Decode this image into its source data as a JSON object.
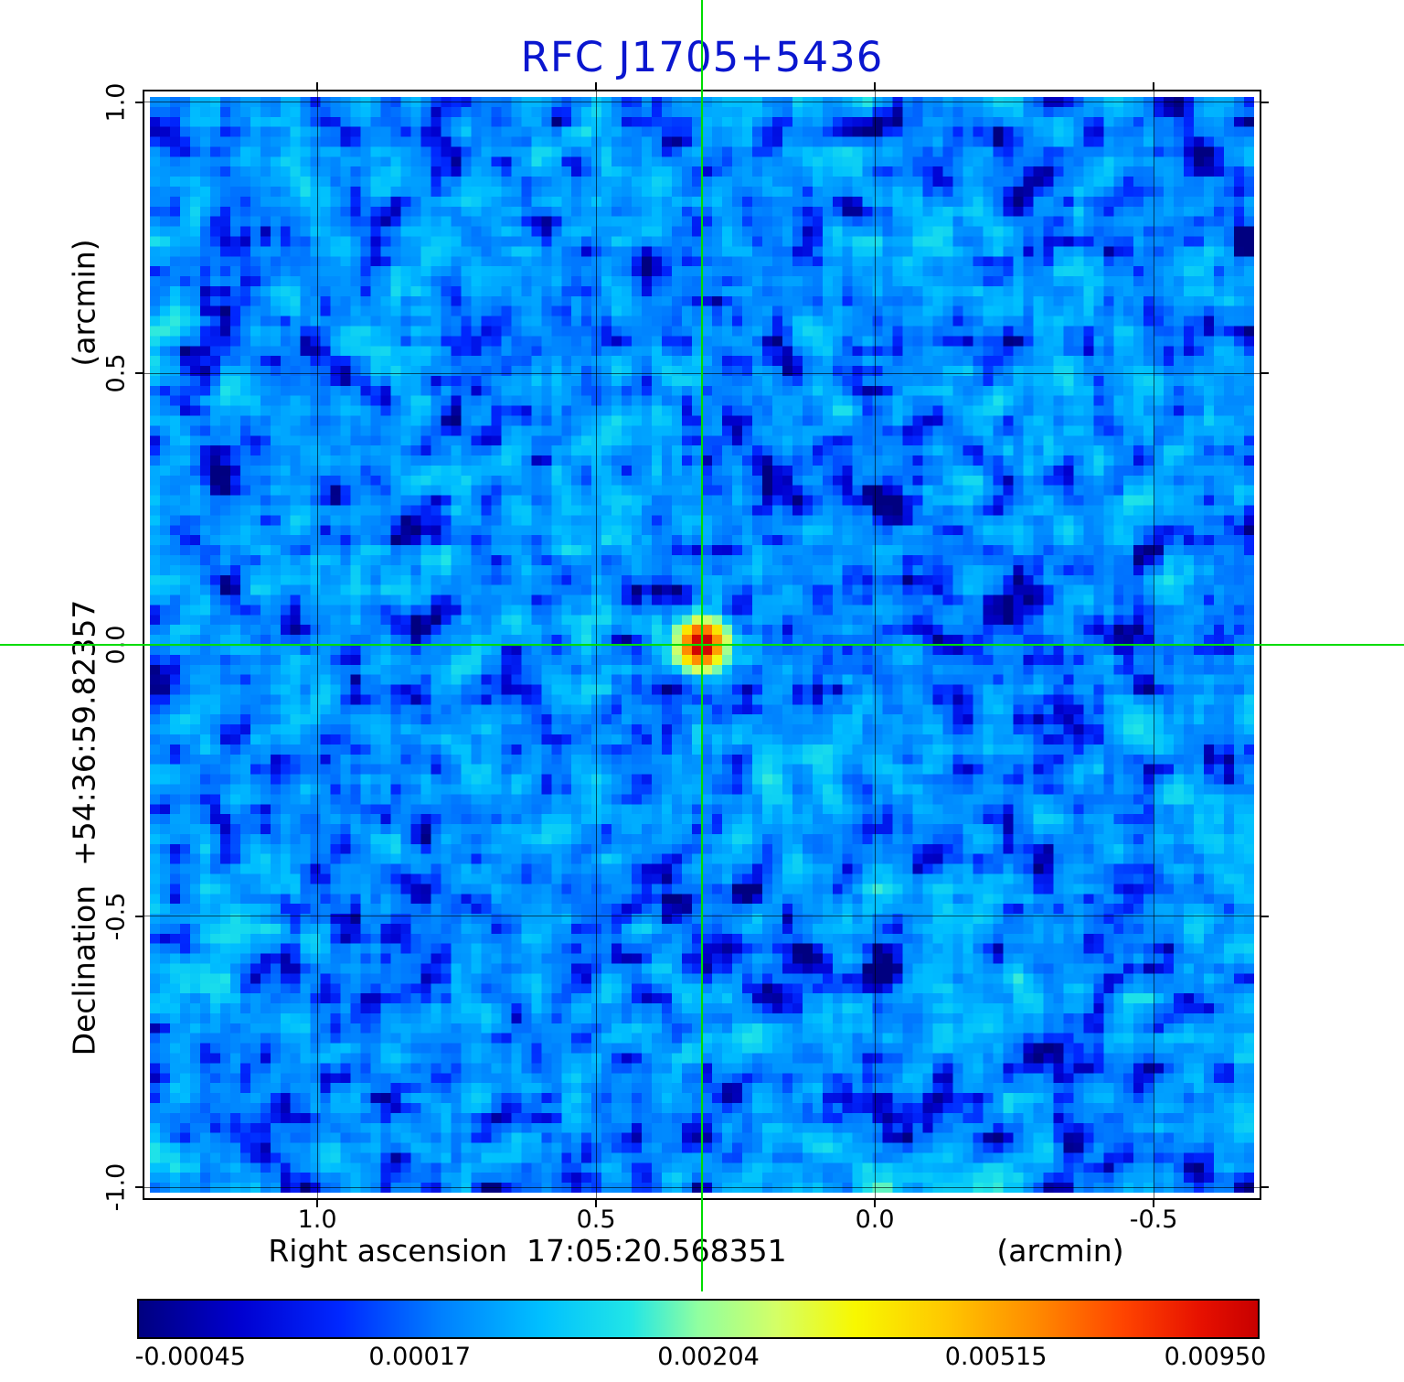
{
  "chart_data": {
    "type": "heatmap",
    "title": "RFC J1705+5436",
    "title_color": "#0a16cf",
    "xlabel": "Right ascension  17:05:20.568351",
    "xunit": "(arcmin)",
    "ylabel": "Declination  +54:36:59.82357",
    "yunit": "(arcmin)",
    "xlim_arcmin": [
      1.31,
      -0.69
    ],
    "ylim_arcmin": [
      1.02,
      -1.02
    ],
    "x_tick_values": [
      1.0,
      0.5,
      0.0,
      -0.5
    ],
    "x_tick_labels": [
      "1.0",
      "0.5",
      "0.0",
      "-0.5"
    ],
    "y_tick_values": [
      1.0,
      0.5,
      0.0,
      -0.5,
      -1.0
    ],
    "y_tick_labels": [
      "1.0",
      "0.5",
      "0.0",
      "-0.5",
      "-1.0"
    ],
    "grid": true,
    "source": {
      "ra_arcmin": 0.31,
      "dec_arcmin": 0.0,
      "peak": 0.0095,
      "sigma_cells": 1.5
    },
    "crosshair": {
      "ra_arcmin": 0.31,
      "dec_arcmin": 0.0,
      "color": "#00dc00"
    },
    "noise": {
      "seed": 1705543,
      "grid": 110,
      "mean": 0.00045,
      "rms": 0.00035,
      "mottle_rms": 0.00012
    },
    "colorbar": {
      "tick_labels": [
        "-0.00045",
        "0.00017",
        "0.00204",
        "0.00515",
        "0.00950"
      ],
      "tick_values": [
        -0.00045,
        0.00017,
        0.00204,
        0.00515,
        0.0095
      ],
      "stops": [
        {
          "pos": 0.0,
          "color": "#000080"
        },
        {
          "pos": 0.09,
          "color": "#0000d0"
        },
        {
          "pos": 0.18,
          "color": "#0028ff"
        },
        {
          "pos": 0.27,
          "color": "#0080ff"
        },
        {
          "pos": 0.36,
          "color": "#00c0ff"
        },
        {
          "pos": 0.44,
          "color": "#22e6e6"
        },
        {
          "pos": 0.5,
          "color": "#90ffa0"
        },
        {
          "pos": 0.57,
          "color": "#d4ff66"
        },
        {
          "pos": 0.64,
          "color": "#f8f800"
        },
        {
          "pos": 0.72,
          "color": "#ffc800"
        },
        {
          "pos": 0.8,
          "color": "#ff8c00"
        },
        {
          "pos": 0.88,
          "color": "#ff4400"
        },
        {
          "pos": 0.95,
          "color": "#e61000"
        },
        {
          "pos": 1.0,
          "color": "#c80000"
        }
      ]
    }
  }
}
